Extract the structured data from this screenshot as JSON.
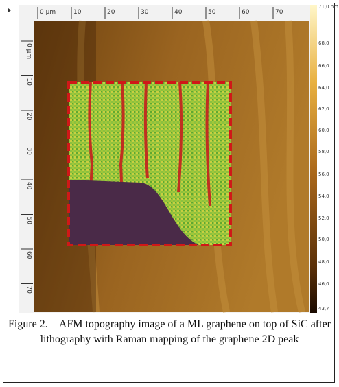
{
  "figure": {
    "x_ruler": [
      "0 µm",
      "10",
      "20",
      "30",
      "40",
      "50",
      "60",
      "70"
    ],
    "y_ruler": [
      "0 µm",
      "10",
      "20",
      "30",
      "40",
      "50",
      "60",
      "70"
    ],
    "colorbar": [
      "71,0 nm",
      "68,0",
      "66,0",
      "64,0",
      "62,0",
      "60,0",
      "58,0",
      "56,0",
      "54,0",
      "52,0",
      "50,0",
      "48,0",
      "46,0",
      "43,7"
    ],
    "caption_label": "Figure 2.",
    "caption_text": "AFM topography image of a ML graphene on top of SiC after lithography with Raman mapping of the graphene 2D peak"
  }
}
